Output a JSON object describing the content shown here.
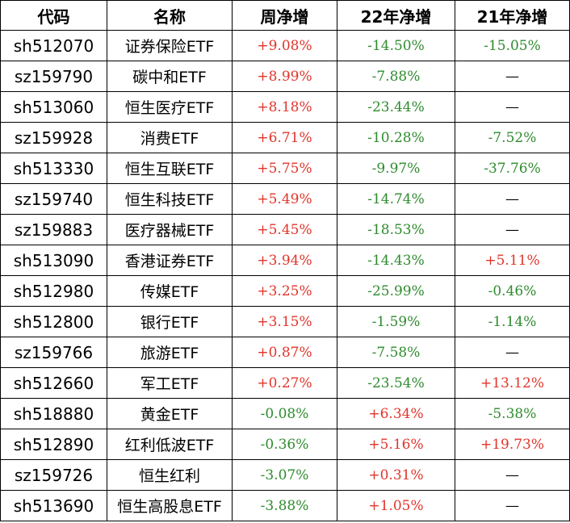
{
  "headers": [
    "代码",
    "名称",
    "周净增",
    "22年净增",
    "21年净增"
  ],
  "colors": {
    "positive": "#e0352b",
    "negative": "#2e8b2e",
    "none": "#000000"
  },
  "rows": [
    {
      "code": "sh512070",
      "name": "证券保险ETF",
      "weekly": "+9.08%",
      "y22": "-14.50%",
      "y21": "-15.05%"
    },
    {
      "code": "sz159790",
      "name": "碳中和ETF",
      "weekly": "+8.99%",
      "y22": "-7.88%",
      "y21": "—"
    },
    {
      "code": "sh513060",
      "name": "恒生医疗ETF",
      "weekly": "+8.18%",
      "y22": "-23.44%",
      "y21": "—"
    },
    {
      "code": "sz159928",
      "name": "消费ETF",
      "weekly": "+6.71%",
      "y22": "-10.28%",
      "y21": "-7.52%"
    },
    {
      "code": "sh513330",
      "name": "恒生互联ETF",
      "weekly": "+5.75%",
      "y22": "-9.97%",
      "y21": "-37.76%"
    },
    {
      "code": "sz159740",
      "name": "恒生科技ETF",
      "weekly": "+5.49%",
      "y22": "-14.74%",
      "y21": "—"
    },
    {
      "code": "sz159883",
      "name": "医疗器械ETF",
      "weekly": "+5.45%",
      "y22": "-18.53%",
      "y21": "—"
    },
    {
      "code": "sh513090",
      "name": "香港证券ETF",
      "weekly": "+3.94%",
      "y22": "-14.43%",
      "y21": "+5.11%"
    },
    {
      "code": "sh512980",
      "name": "传媒ETF",
      "weekly": "+3.25%",
      "y22": "-25.99%",
      "y21": "-0.46%"
    },
    {
      "code": "sh512800",
      "name": "银行ETF",
      "weekly": "+3.15%",
      "y22": "-1.59%",
      "y21": "-1.14%"
    },
    {
      "code": "sz159766",
      "name": "旅游ETF",
      "weekly": "+0.87%",
      "y22": "-7.58%",
      "y21": "—"
    },
    {
      "code": "sh512660",
      "name": "军工ETF",
      "weekly": "+0.27%",
      "y22": "-23.54%",
      "y21": "+13.12%"
    },
    {
      "code": "sh518880",
      "name": "黄金ETF",
      "weekly": "-0.08%",
      "y22": "+6.34%",
      "y21": "-5.38%"
    },
    {
      "code": "sh512890",
      "name": "红利低波ETF",
      "weekly": "-0.36%",
      "y22": "+5.16%",
      "y21": "+19.73%"
    },
    {
      "code": "sz159726",
      "name": "恒生红利",
      "weekly": "-3.07%",
      "y22": "+0.31%",
      "y21": "—"
    },
    {
      "code": "sh513690",
      "name": "恒生高股息ETF",
      "weekly": "-3.88%",
      "y22": "+1.05%",
      "y21": "—"
    }
  ]
}
